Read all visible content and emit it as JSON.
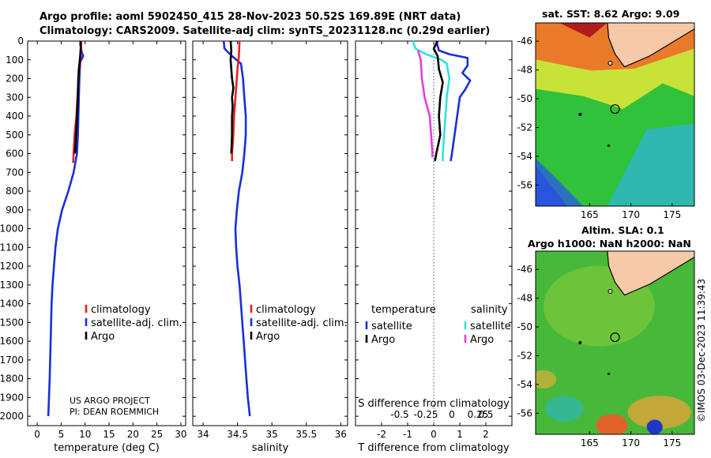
{
  "header": {
    "line1": "Argo profile: aoml 5902450_415 28-Nov-2023 50.52S 169.89E (NRT data)",
    "line2": "Climatology: CARS2009. Satellite-adj clim: synTS_20231128.nc (0.29d earlier)"
  },
  "credit": "©IMOS 03-Dec-2023 11:39:43",
  "colors": {
    "climatology": "#e8201f",
    "satellite": "#1a2fd8",
    "argo": "#000000",
    "sal_satellite": "#33e0e0",
    "sal_argo": "#e040e0",
    "land": "#f6c9a8"
  },
  "chart_data": [
    {
      "id": "temperature",
      "type": "line",
      "xlabel": "temperature (deg C)",
      "ylabel": "",
      "xlim": [
        -2,
        31
      ],
      "ylim": [
        2050,
        0
      ],
      "xticks": [
        0,
        5,
        10,
        15,
        20,
        25,
        30
      ],
      "yticks": [
        0,
        100,
        200,
        300,
        400,
        500,
        600,
        700,
        800,
        900,
        1000,
        1100,
        1200,
        1300,
        1400,
        1500,
        1600,
        1700,
        1800,
        1900,
        2000
      ],
      "legend": [
        "climatology",
        "satellite-adj. clim.",
        "Argo"
      ],
      "credit_lines": [
        "US ARGO PROJECT",
        "PI: DEAN ROEMMICH"
      ],
      "series": [
        {
          "name": "satellite-adj. clim.",
          "color": "#1a2fd8",
          "points": [
            [
              9.1,
              0
            ],
            [
              9.0,
              20
            ],
            [
              9.3,
              60
            ],
            [
              9.6,
              80
            ],
            [
              9.0,
              110
            ],
            [
              8.8,
              200
            ],
            [
              8.7,
              300
            ],
            [
              8.6,
              400
            ],
            [
              8.5,
              500
            ],
            [
              8.3,
              600
            ],
            [
              7.6,
              700
            ],
            [
              6.5,
              800
            ],
            [
              5.2,
              900
            ],
            [
              4.3,
              1000
            ],
            [
              3.8,
              1100
            ],
            [
              3.5,
              1200
            ],
            [
              3.2,
              1300
            ],
            [
              3.0,
              1400
            ],
            [
              2.9,
              1500
            ],
            [
              2.8,
              1600
            ],
            [
              2.7,
              1700
            ],
            [
              2.6,
              1800
            ],
            [
              2.45,
              1900
            ],
            [
              2.3,
              2000
            ]
          ]
        },
        {
          "name": "climatology",
          "color": "#e8201f",
          "points": [
            [
              9.2,
              0
            ],
            [
              9.0,
              100
            ],
            [
              8.6,
              200
            ],
            [
              8.4,
              300
            ],
            [
              8.2,
              400
            ],
            [
              7.8,
              500
            ],
            [
              7.6,
              600
            ],
            [
              7.5,
              650
            ]
          ]
        },
        {
          "name": "Argo",
          "color": "#000000",
          "points": [
            [
              9.0,
              0
            ],
            [
              9.1,
              30
            ],
            [
              9.0,
              70
            ],
            [
              8.9,
              100
            ],
            [
              8.7,
              150
            ],
            [
              8.6,
              200
            ],
            [
              8.5,
              300
            ],
            [
              8.3,
              400
            ],
            [
              8.1,
              500
            ],
            [
              7.9,
              600
            ]
          ]
        }
      ]
    },
    {
      "id": "salinity",
      "type": "line",
      "xlabel": "salinity",
      "xlim": [
        33.85,
        36.1
      ],
      "ylim": [
        2050,
        0
      ],
      "xticks": [
        34,
        34.5,
        35,
        35.5,
        36
      ],
      "legend": [
        "climatology",
        "satellite-adj. clim.",
        "Argo"
      ],
      "series": [
        {
          "name": "satellite-adj. clim.",
          "color": "#1a2fd8",
          "points": [
            [
              34.3,
              0
            ],
            [
              34.31,
              40
            ],
            [
              34.42,
              80
            ],
            [
              34.55,
              120
            ],
            [
              34.58,
              200
            ],
            [
              34.6,
              300
            ],
            [
              34.62,
              400
            ],
            [
              34.62,
              500
            ],
            [
              34.6,
              600
            ],
            [
              34.57,
              700
            ],
            [
              34.52,
              800
            ],
            [
              34.49,
              900
            ],
            [
              34.47,
              1000
            ],
            [
              34.48,
              1100
            ],
            [
              34.5,
              1200
            ],
            [
              34.53,
              1300
            ],
            [
              34.55,
              1400
            ],
            [
              34.57,
              1500
            ],
            [
              34.59,
              1600
            ],
            [
              34.61,
              1700
            ],
            [
              34.63,
              1800
            ],
            [
              34.65,
              1900
            ],
            [
              34.68,
              2000
            ]
          ]
        },
        {
          "name": "climatology",
          "color": "#e8201f",
          "points": [
            [
              34.53,
              0
            ],
            [
              34.52,
              80
            ],
            [
              34.5,
              150
            ],
            [
              34.47,
              300
            ],
            [
              34.45,
              400
            ],
            [
              34.44,
              500
            ],
            [
              34.42,
              600
            ],
            [
              34.42,
              640
            ]
          ]
        },
        {
          "name": "Argo",
          "color": "#000000",
          "points": [
            [
              34.4,
              0
            ],
            [
              34.41,
              50
            ],
            [
              34.4,
              100
            ],
            [
              34.41,
              150
            ],
            [
              34.42,
              200
            ],
            [
              34.44,
              250
            ],
            [
              34.42,
              300
            ],
            [
              34.43,
              350
            ],
            [
              34.42,
              400
            ],
            [
              34.42,
              500
            ],
            [
              34.41,
              600
            ]
          ]
        }
      ]
    },
    {
      "id": "difference",
      "type": "line",
      "xlabel": "T difference from climatology",
      "xlabel_top": "S difference from climatology",
      "xlim": [
        -3,
        3
      ],
      "ylim": [
        2050,
        0
      ],
      "xticks": [
        -2,
        -1,
        0,
        1,
        2
      ],
      "xticks_top_labels": [
        "-0.5",
        "-0.25",
        "0",
        "0.25",
        "0.5"
      ],
      "legend_left_title": "temperature",
      "legend_right_title": "salinity",
      "legend_left": [
        "satellite",
        "Argo"
      ],
      "legend_right": [
        "satellite",
        "Argo"
      ],
      "series": [
        {
          "name": "T satellite",
          "color": "#1a2fd8",
          "points": [
            [
              0.1,
              0
            ],
            [
              0.2,
              50
            ],
            [
              0.6,
              70
            ],
            [
              1.3,
              90
            ],
            [
              1.3,
              130
            ],
            [
              1.1,
              170
            ],
            [
              1.4,
              210
            ],
            [
              1.2,
              260
            ],
            [
              1.0,
              300
            ],
            [
              0.9,
              400
            ],
            [
              0.8,
              500
            ],
            [
              0.7,
              600
            ],
            [
              0.65,
              640
            ]
          ]
        },
        {
          "name": "S satellite",
          "color": "#33e0e0",
          "points": [
            [
              -0.8,
              0
            ],
            [
              -0.7,
              40
            ],
            [
              -0.3,
              70
            ],
            [
              0.3,
              100
            ],
            [
              0.5,
              120
            ],
            [
              0.6,
              200
            ],
            [
              0.5,
              300
            ],
            [
              0.45,
              400
            ],
            [
              0.4,
              500
            ],
            [
              0.35,
              600
            ],
            [
              0.35,
              640
            ]
          ]
        },
        {
          "name": "S Argo",
          "color": "#e040e0",
          "points": [
            [
              -0.6,
              50
            ],
            [
              -0.5,
              100
            ],
            [
              -0.45,
              200
            ],
            [
              -0.35,
              300
            ],
            [
              -0.15,
              400
            ],
            [
              -0.1,
              500
            ],
            [
              -0.05,
              600
            ],
            [
              -0.05,
              620
            ]
          ]
        },
        {
          "name": "T Argo",
          "color": "#000000",
          "points": [
            [
              0.15,
              0
            ],
            [
              0.0,
              40
            ],
            [
              0.15,
              80
            ],
            [
              0.2,
              150
            ],
            [
              0.35,
              220
            ],
            [
              0.25,
              300
            ],
            [
              0.2,
              400
            ],
            [
              0.25,
              500
            ],
            [
              0.1,
              600
            ],
            [
              0.05,
              640
            ]
          ]
        }
      ]
    }
  ],
  "maps": [
    {
      "id": "sst-map",
      "title": "sat. SST: 8.62 Argo: 9.09",
      "xticks": [
        "165",
        "170",
        "175"
      ],
      "yticks": [
        "-46",
        "-48",
        "-50",
        "-52",
        "-54",
        "-56"
      ]
    },
    {
      "id": "sla-map",
      "title_line1": "Altim. SLA: 0.1",
      "title_line2": "Argo h1000: NaN h2000: NaN",
      "xticks": [
        "165",
        "170",
        "175"
      ],
      "yticks": [
        "-46",
        "-48",
        "-50",
        "-52",
        "-54",
        "-56"
      ]
    }
  ]
}
